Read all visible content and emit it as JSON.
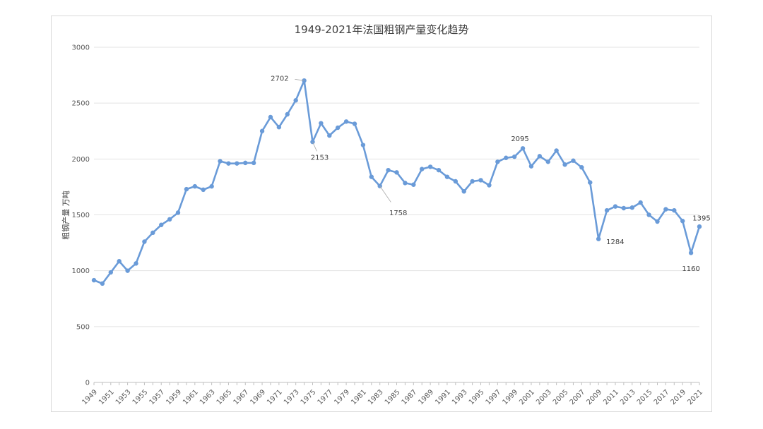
{
  "chart_data": {
    "type": "line",
    "title": "1949-2021年法国粗钢产量变化趋势",
    "ylabel": "粗钢产量 万吨",
    "xlabel": "",
    "ylim": [
      0,
      3000
    ],
    "yticks": [
      0,
      500,
      1000,
      1500,
      2000,
      2500,
      3000
    ],
    "grid": true,
    "series_color": "#6a9bd8",
    "x": [
      1949,
      1950,
      1951,
      1952,
      1953,
      1954,
      1955,
      1956,
      1957,
      1958,
      1959,
      1960,
      1961,
      1962,
      1963,
      1964,
      1965,
      1966,
      1967,
      1968,
      1969,
      1970,
      1971,
      1972,
      1973,
      1974,
      1975,
      1976,
      1977,
      1978,
      1979,
      1980,
      1981,
      1982,
      1983,
      1984,
      1985,
      1986,
      1987,
      1988,
      1989,
      1990,
      1991,
      1992,
      1993,
      1994,
      1995,
      1996,
      1997,
      1998,
      1999,
      2000,
      2001,
      2002,
      2003,
      2004,
      2005,
      2006,
      2007,
      2008,
      2009,
      2010,
      2011,
      2012,
      2013,
      2014,
      2015,
      2016,
      2017,
      2018,
      2019,
      2020,
      2021
    ],
    "xtick_labels": [
      1949,
      1951,
      1953,
      1955,
      1957,
      1959,
      1961,
      1963,
      1965,
      1967,
      1969,
      1971,
      1973,
      1975,
      1977,
      1979,
      1981,
      1983,
      1985,
      1987,
      1989,
      1991,
      1993,
      1995,
      1997,
      1999,
      2001,
      2003,
      2005,
      2007,
      2009,
      2011,
      2013,
      2015,
      2017,
      2019,
      2021
    ],
    "values": [
      915,
      885,
      985,
      1085,
      1000,
      1065,
      1260,
      1340,
      1410,
      1460,
      1520,
      1730,
      1755,
      1725,
      1755,
      1980,
      1960,
      1960,
      1965,
      1965,
      2250,
      2375,
      2285,
      2400,
      2525,
      2702,
      2153,
      2320,
      2210,
      2280,
      2335,
      2315,
      2125,
      1840,
      1758,
      1900,
      1880,
      1785,
      1770,
      1910,
      1930,
      1900,
      1840,
      1800,
      1710,
      1800,
      1810,
      1765,
      1975,
      2010,
      2020,
      2095,
      1935,
      2025,
      1975,
      2075,
      1950,
      1985,
      1925,
      1790,
      1284,
      1540,
      1575,
      1560,
      1565,
      1610,
      1500,
      1440,
      1550,
      1540,
      1445,
      1160,
      1395
    ],
    "annotations": [
      {
        "year": 1974,
        "label": "2702"
      },
      {
        "year": 1975,
        "label": "2153"
      },
      {
        "year": 1983,
        "label": "1758"
      },
      {
        "year": 2000,
        "label": "2095"
      },
      {
        "year": 2009,
        "label": "1284"
      },
      {
        "year": 2020,
        "label": "1160"
      },
      {
        "year": 2021,
        "label": "1395"
      }
    ]
  }
}
